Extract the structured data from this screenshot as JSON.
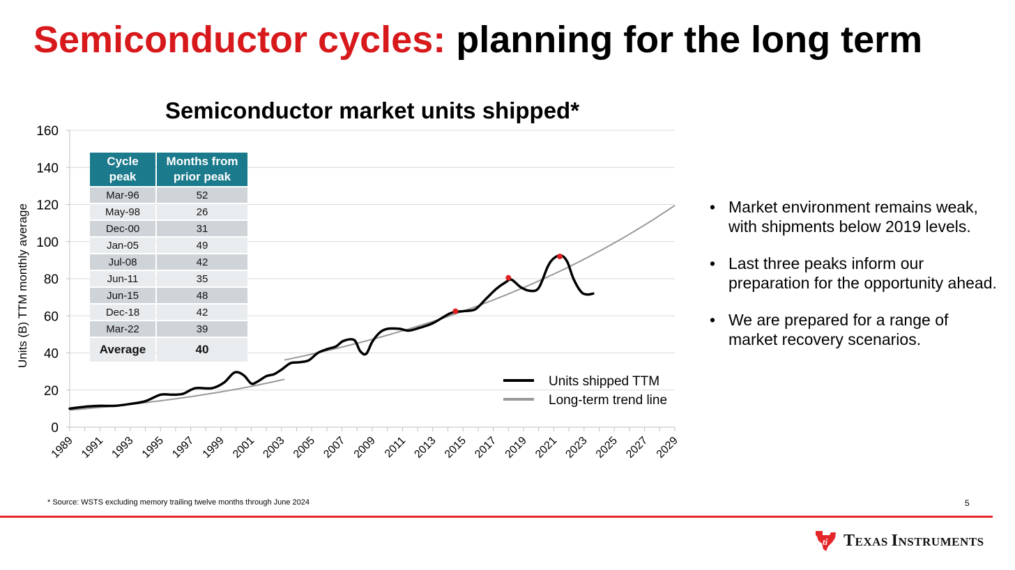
{
  "slide": {
    "title_accent": "Semiconductor cycles:",
    "title_rest": " planning for the long term",
    "footnote": "* Source: WSTS excluding memory trailing twelve months through June 2024",
    "page_number": "5",
    "logo_name": "Texas Instruments",
    "logo_T": "T",
    "logo_exas": "EXAS ",
    "logo_I": "I",
    "logo_nstruments": "NSTRUMENTS",
    "accent_color": "#d7191c",
    "footer_rule_color": "#e4262b"
  },
  "bullets": [
    "Market environment remains weak, with shipments below 2019 levels.",
    "Last three peaks inform our preparation for the opportunity ahead.",
    "We are prepared for a range of market recovery scenarios."
  ],
  "bullet_char": "•",
  "peak_table": {
    "headers": [
      "Cycle peak",
      "Months from prior peak"
    ],
    "rows": [
      [
        "Mar-96",
        "52"
      ],
      [
        "May-98",
        "26"
      ],
      [
        "Dec-00",
        "31"
      ],
      [
        "Jan-05",
        "49"
      ],
      [
        "Jul-08",
        "42"
      ],
      [
        "Jun-11",
        "35"
      ],
      [
        "Jun-15",
        "48"
      ],
      [
        "Dec-18",
        "42"
      ],
      [
        "Mar-22",
        "39"
      ]
    ],
    "average_label": "Average",
    "average_value": "40",
    "header_color": "#1b7a8c"
  },
  "chart_data": {
    "type": "line",
    "title": "Semiconductor market units shipped*",
    "ylabel": "Units (B) TTM monthly average",
    "xlabel": "",
    "xlim": [
      1989,
      2029
    ],
    "ylim": [
      0,
      160
    ],
    "yticks": [
      0,
      20,
      40,
      60,
      80,
      100,
      120,
      140,
      160
    ],
    "xticks": [
      "1989",
      "1991",
      "1993",
      "1995",
      "1997",
      "1999",
      "2001",
      "2003",
      "2005",
      "2007",
      "2009",
      "2011",
      "2013",
      "2015",
      "2017",
      "2019",
      "2021",
      "2023",
      "2025",
      "2027",
      "2029"
    ],
    "grid": true,
    "legend_position": "bottom-right",
    "series": [
      {
        "name": "Units shipped TTM",
        "color": "#000000",
        "x": [
          1989.0,
          1990.0,
          1991.0,
          1992.0,
          1993.0,
          1994.0,
          1995.0,
          1995.8,
          1996.5,
          1997.3,
          1998.4,
          1999.2,
          1999.9,
          2000.5,
          2001.0,
          2001.4,
          2002.0,
          2002.5,
          2003.0,
          2003.6,
          2004.2,
          2004.8,
          2005.4,
          2006.0,
          2006.6,
          2007.1,
          2007.8,
          2008.2,
          2008.6,
          2009.0,
          2009.5,
          2010.0,
          2010.8,
          2011.4,
          2012.1,
          2013.0,
          2014.2,
          2015.0,
          2015.8,
          2016.5,
          2017.2,
          2017.8,
          2018.2,
          2018.8,
          2019.4,
          2020.0,
          2020.6,
          2021.0,
          2021.5,
          2021.9,
          2022.3,
          2022.8,
          2023.2,
          2023.6
        ],
        "y": [
          10,
          11,
          11.5,
          11.5,
          12.5,
          14,
          17.5,
          17.5,
          18,
          21,
          21,
          24,
          29.5,
          28,
          23.5,
          24.5,
          27.5,
          28.5,
          31,
          34.5,
          35,
          36,
          40,
          42,
          43.5,
          46.5,
          47,
          41,
          39.5,
          46,
          51,
          53,
          53,
          52,
          53.5,
          56,
          61.5,
          62.5,
          63.5,
          69,
          74.5,
          78,
          79.5,
          75.5,
          73.5,
          75,
          86.5,
          91,
          92.5,
          89,
          80,
          73,
          71.5,
          72
        ]
      },
      {
        "name": "Long-term trend line",
        "color": "#999999",
        "trend": {
          "segments": [
            [
              1989,
              2003.2
            ],
            [
              2003.2,
              2029
            ]
          ],
          "y_start": 9.2,
          "y_2003": 25.8,
          "y_2003_offset": 36.2,
          "y_end": 119.5
        }
      }
    ],
    "peaks": [
      {
        "label": "Jun-15",
        "x": 2014.5,
        "y": 62.5
      },
      {
        "label": "Dec-18",
        "x": 2018.0,
        "y": 80.5
      },
      {
        "label": "Mar-22",
        "x": 2021.4,
        "y": 92.0
      }
    ],
    "peak_color": "#e02020"
  }
}
